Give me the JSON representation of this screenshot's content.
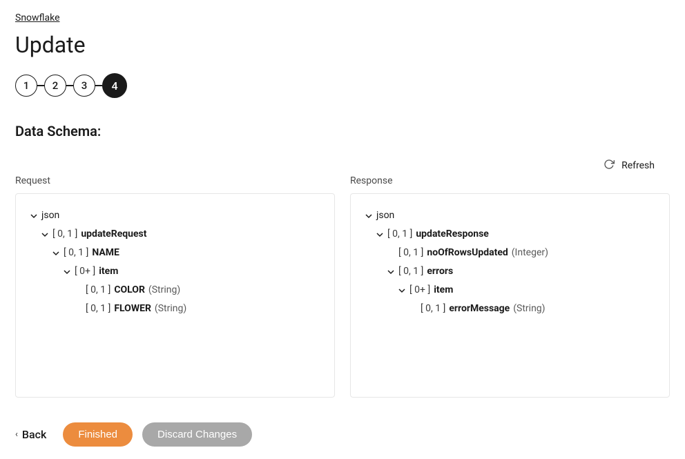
{
  "breadcrumb": {
    "label": "Snowflake"
  },
  "page": {
    "title": "Update",
    "sectionHeading": "Data Schema:"
  },
  "stepper": {
    "steps": [
      "1",
      "2",
      "3",
      "4"
    ],
    "activeIndex": 3
  },
  "refresh": {
    "label": "Refresh"
  },
  "panels": {
    "request": {
      "title": "Request",
      "root": {
        "label": "json"
      },
      "nodes": [
        {
          "indent": 1,
          "chevron": true,
          "card": "[ 0, 1 ]",
          "name": "updateRequest"
        },
        {
          "indent": 2,
          "chevron": true,
          "card": "[ 0, 1 ]",
          "name": "NAME"
        },
        {
          "indent": 3,
          "chevron": true,
          "card": "[ 0+ ]",
          "name": "item"
        },
        {
          "indent": 4,
          "chevron": false,
          "card": "[ 0, 1 ]",
          "name": "COLOR",
          "type": "(String)"
        },
        {
          "indent": 4,
          "chevron": false,
          "card": "[ 0, 1 ]",
          "name": "FLOWER",
          "type": "(String)"
        }
      ]
    },
    "response": {
      "title": "Response",
      "root": {
        "label": "json"
      },
      "nodes": [
        {
          "indent": 1,
          "chevron": true,
          "card": "[ 0, 1 ]",
          "name": "updateResponse"
        },
        {
          "indent": 2,
          "chevron": false,
          "card": "[ 0, 1 ]",
          "name": "noOfRowsUpdated",
          "type": "(Integer)"
        },
        {
          "indent": 2,
          "chevron": true,
          "card": "[ 0, 1 ]",
          "name": "errors"
        },
        {
          "indent": 3,
          "chevron": true,
          "card": "[ 0+ ]",
          "name": "item"
        },
        {
          "indent": 4,
          "chevron": false,
          "card": "[ 0, 1 ]",
          "name": "errorMessage",
          "type": "(String)"
        }
      ]
    }
  },
  "footer": {
    "back": "Back",
    "finished": "Finished",
    "discard": "Discard Changes"
  },
  "colors": {
    "primaryButton": "#ec8c3e",
    "secondaryButton": "#a8a8a8",
    "stepActiveBg": "#1a1a1a",
    "border": "#e6e6e6"
  }
}
